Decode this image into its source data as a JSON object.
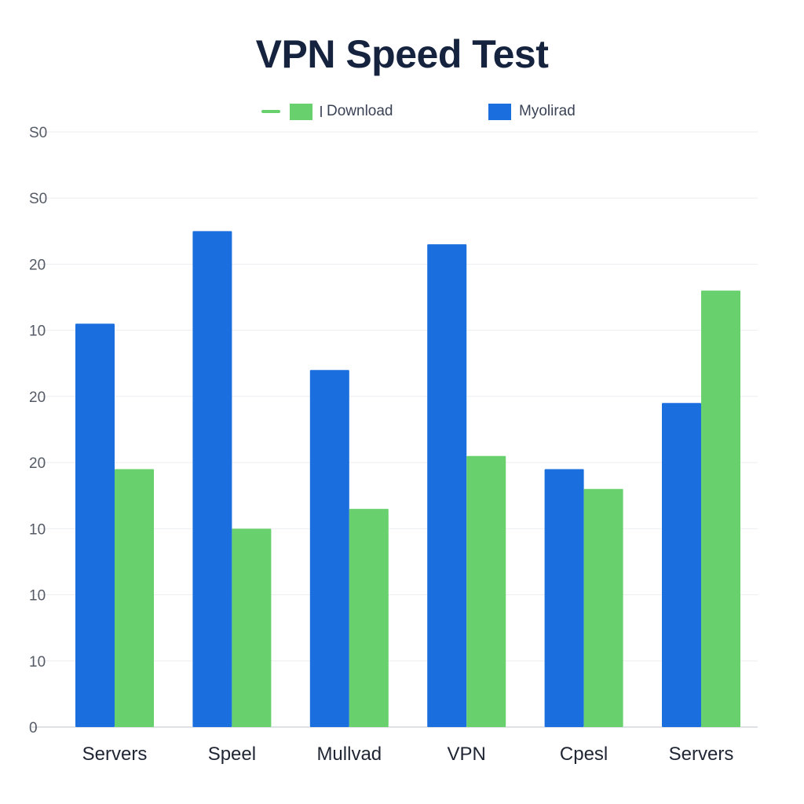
{
  "chart_data": {
    "type": "bar",
    "title": "VPN Speed Test",
    "xlabel": "",
    "ylabel": "",
    "categories": [
      "Servers",
      "Speel",
      "Mullvad",
      "VPN",
      "Cpesl",
      "Servers"
    ],
    "yticks": [
      "0",
      "10",
      "10",
      "10",
      "20",
      "20",
      "10",
      "20",
      "S0",
      "S0"
    ],
    "ylim": [
      0,
      9
    ],
    "grid": true,
    "legend_position": "top",
    "series": [
      {
        "name": "Myolirad",
        "color": "#1a6ede",
        "values": [
          6.1,
          7.5,
          5.4,
          7.3,
          3.9,
          4.9
        ]
      },
      {
        "name": "Download",
        "color": "#68d16e",
        "values": [
          3.9,
          3.0,
          3.3,
          4.1,
          3.6,
          6.6
        ]
      }
    ]
  },
  "legend": {
    "download_label": "Download",
    "upload_label": "Myolirad",
    "download_color": "#68d16e",
    "upload_color": "#1a6ede"
  }
}
